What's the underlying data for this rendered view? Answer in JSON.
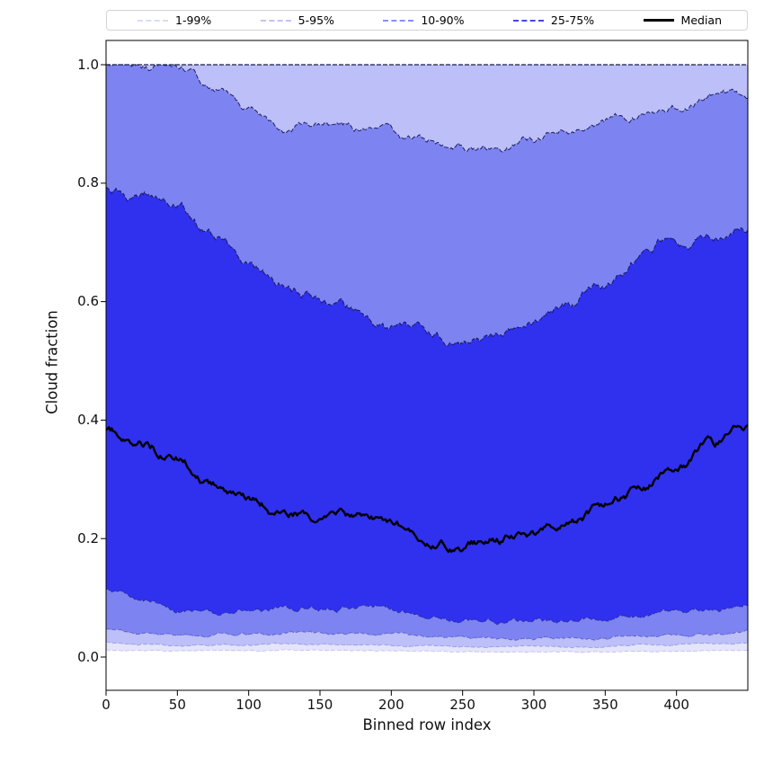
{
  "figure": {
    "background": "#ffffff"
  },
  "axes": {
    "xlabel": "Binned row index",
    "ylabel": "Cloud fraction",
    "xtick_labels": [
      "0",
      "50",
      "100",
      "150",
      "200",
      "250",
      "300",
      "350",
      "400"
    ],
    "ytick_labels": [
      "0.0",
      "0.2",
      "0.4",
      "0.6",
      "0.8",
      "1.0"
    ],
    "xlim": [
      0,
      450
    ],
    "ylim": [
      -0.056,
      1.041
    ],
    "grid": false
  },
  "legend": {
    "position": "top",
    "items": [
      {
        "label": "1-99%",
        "color": "#d9daf9",
        "style": "dashed",
        "weight": 2
      },
      {
        "label": "5-95%",
        "color": "#c0c3f8",
        "style": "dashed",
        "weight": 2
      },
      {
        "label": "10-90%",
        "color": "#8a90f3",
        "style": "dashed",
        "weight": 2
      },
      {
        "label": "25-75%",
        "color": "#4347ee",
        "style": "dashed",
        "weight": 2
      },
      {
        "label": "Median",
        "color": "#000000",
        "style": "solid",
        "weight": 3
      }
    ]
  },
  "chart_data": {
    "type": "area",
    "title": "",
    "xlabel": "Binned row index",
    "ylabel": "Cloud fraction",
    "xlim": [
      0,
      450
    ],
    "ylim": [
      0,
      1
    ],
    "grid": false,
    "legend_position": "top",
    "x": [
      0,
      25,
      50,
      75,
      100,
      125,
      150,
      175,
      200,
      225,
      250,
      275,
      300,
      325,
      350,
      375,
      400,
      425,
      450
    ],
    "series": [
      {
        "name": "p1",
        "values": [
          0.012,
          0.011,
          0.01,
          0.01,
          0.01,
          0.011,
          0.011,
          0.011,
          0.01,
          0.01,
          0.009,
          0.009,
          0.009,
          0.009,
          0.009,
          0.01,
          0.01,
          0.011,
          0.012
        ]
      },
      {
        "name": "p5",
        "values": [
          0.026,
          0.022,
          0.02,
          0.02,
          0.021,
          0.022,
          0.022,
          0.022,
          0.021,
          0.02,
          0.019,
          0.018,
          0.018,
          0.018,
          0.019,
          0.02,
          0.021,
          0.022,
          0.024
        ]
      },
      {
        "name": "p10",
        "values": [
          0.048,
          0.04,
          0.036,
          0.035,
          0.037,
          0.04,
          0.04,
          0.04,
          0.038,
          0.035,
          0.033,
          0.032,
          0.031,
          0.031,
          0.032,
          0.034,
          0.036,
          0.038,
          0.042
        ]
      },
      {
        "name": "p25",
        "values": [
          0.115,
          0.092,
          0.08,
          0.074,
          0.079,
          0.084,
          0.086,
          0.085,
          0.08,
          0.072,
          0.066,
          0.062,
          0.06,
          0.06,
          0.064,
          0.068,
          0.074,
          0.081,
          0.091
        ]
      },
      {
        "name": "median",
        "values": [
          0.38,
          0.355,
          0.332,
          0.3,
          0.268,
          0.246,
          0.24,
          0.234,
          0.222,
          0.192,
          0.184,
          0.2,
          0.212,
          0.23,
          0.252,
          0.28,
          0.314,
          0.352,
          0.388
        ]
      },
      {
        "name": "p75",
        "values": [
          0.795,
          0.78,
          0.762,
          0.718,
          0.664,
          0.624,
          0.604,
          0.585,
          0.556,
          0.545,
          0.531,
          0.536,
          0.566,
          0.6,
          0.632,
          0.664,
          0.7,
          0.718,
          0.726
        ]
      },
      {
        "name": "p90",
        "values": [
          1.0,
          1.0,
          0.999,
          0.966,
          0.93,
          0.893,
          0.903,
          0.89,
          0.874,
          0.864,
          0.858,
          0.856,
          0.872,
          0.888,
          0.902,
          0.914,
          0.926,
          0.948,
          0.944
        ]
      },
      {
        "name": "p95",
        "values": [
          1.0,
          1.0,
          1.0,
          1.0,
          1.0,
          1.0,
          1.0,
          1.0,
          1.0,
          1.0,
          1.0,
          1.0,
          1.0,
          1.0,
          1.0,
          1.0,
          1.0,
          1.0,
          1.0
        ]
      },
      {
        "name": "p99",
        "values": [
          1.0,
          1.0,
          1.0,
          1.0,
          1.0,
          1.0,
          1.0,
          1.0,
          1.0,
          1.0,
          1.0,
          1.0,
          1.0,
          1.0,
          1.0,
          1.0,
          1.0,
          1.0,
          1.0
        ]
      }
    ],
    "bands": [
      {
        "label": "1-99%",
        "lower": "p1",
        "upper": "p99",
        "fill": "#e4e4fb"
      },
      {
        "label": "5-95%",
        "lower": "p5",
        "upper": "p95",
        "fill": "#bcbff8"
      },
      {
        "label": "10-90%",
        "lower": "p10",
        "upper": "p90",
        "fill": "#7d84f1"
      },
      {
        "label": "25-75%",
        "lower": "p25",
        "upper": "p75",
        "fill": "#3030ef"
      }
    ],
    "edges": {
      "p99": "#151548",
      "p95": "#3d3d90",
      "p90": "#14144d",
      "p75": "#14144d",
      "p25": "#1b1b6e",
      "p10": "#3a3aa8",
      "p5": "#7b7fd6",
      "p1": "#b7b9ea"
    },
    "median_style": {
      "color": "#000000",
      "linewidth": 2.4
    }
  }
}
